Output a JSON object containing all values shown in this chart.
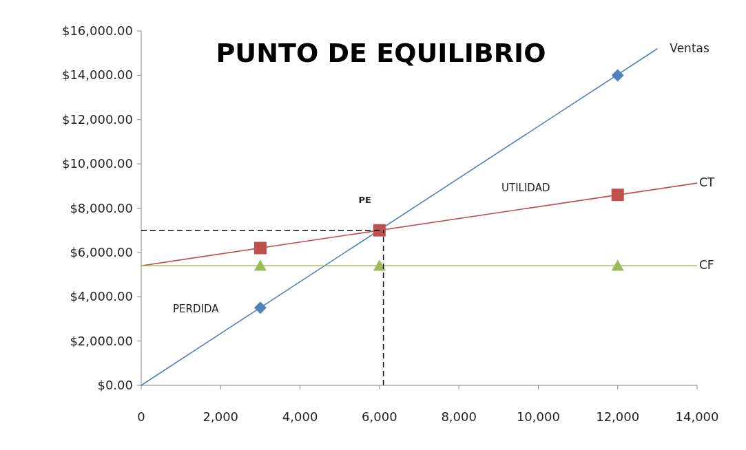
{
  "chart_data": {
    "type": "line",
    "title": "PUNTO DE EQUILIBRIO",
    "xlim": [
      0,
      14000
    ],
    "ylim": [
      0,
      16000
    ],
    "xticks": [
      0,
      {
        "value": 2000,
        "label": "2,000"
      },
      {
        "value": 4000,
        "label": "4,000"
      },
      {
        "value": 6000,
        "label": "6,000"
      },
      {
        "value": 8000,
        "label": "8,000"
      },
      {
        "value": 10000,
        "label": "10,000"
      },
      {
        "value": 12000,
        "label": "12,000"
      },
      {
        "value": 14000,
        "label": "14,000"
      }
    ],
    "yticks": [
      {
        "value": 0,
        "label": "$0.00"
      },
      {
        "value": 2000,
        "label": "$2,000.00"
      },
      {
        "value": 4000,
        "label": "$4,000.00"
      },
      {
        "value": 6000,
        "label": "$6,000.00"
      },
      {
        "value": 8000,
        "label": "$8,000.00"
      },
      {
        "value": 10000,
        "label": "$10,000.00"
      },
      {
        "value": 12000,
        "label": "$12,000.00"
      },
      {
        "value": 14000,
        "label": "$14,000.00"
      },
      {
        "value": 16000,
        "label": "$16,000.00"
      }
    ],
    "grid": false,
    "series": [
      {
        "name": "Ventas",
        "color": "#4f81bd",
        "marker": "none",
        "x": [
          0,
          13000
        ],
        "values": [
          0,
          15200
        ]
      },
      {
        "type": "scatter",
        "color": "#4f81bd",
        "marker": "diamond",
        "x": [
          3000,
          6000,
          12000
        ],
        "values": [
          3500,
          null,
          14000
        ]
      },
      {
        "name": "CT",
        "color": "#c0504d",
        "marker": "none",
        "x": [
          0,
          14000
        ],
        "values": [
          5400,
          9130
        ]
      },
      {
        "type": "scatter",
        "color": "#c0504d",
        "marker": "square",
        "x": [
          3000,
          6000,
          12000
        ],
        "values": [
          6200,
          7000,
          8600
        ]
      },
      {
        "name": "CF",
        "color": "#9bbb59",
        "marker": "none",
        "x": [
          0,
          14000
        ],
        "values": [
          5400,
          5400
        ]
      },
      {
        "type": "scatter",
        "color": "#9bbb59",
        "marker": "triangle",
        "x": [
          3000,
          6000,
          12000
        ],
        "values": [
          5400,
          5400,
          5400
        ]
      }
    ],
    "ref_lines": [
      {
        "axis": "y",
        "value": 7000,
        "color": "#000000",
        "line_style": "dashed"
      },
      {
        "axis": "x",
        "value": 6100,
        "color": "#000000",
        "line_style": "dashed"
      }
    ],
    "annotations": [
      {
        "text": "PE",
        "x": 6000,
        "y": 7000
      },
      "UTILIDAD",
      "PERDIDA"
    ]
  }
}
